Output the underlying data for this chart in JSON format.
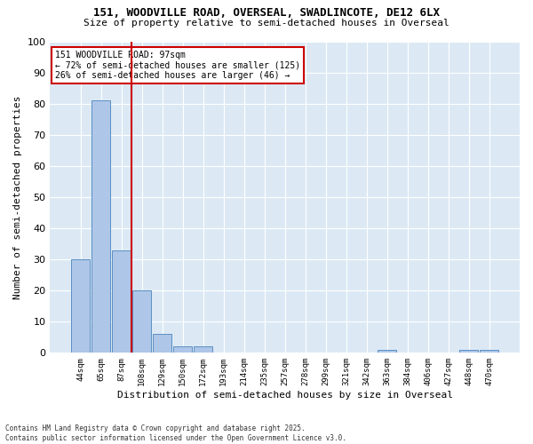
{
  "title_line1": "151, WOODVILLE ROAD, OVERSEAL, SWADLINCOTE, DE12 6LX",
  "title_line2": "Size of property relative to semi-detached houses in Overseal",
  "xlabel": "Distribution of semi-detached houses by size in Overseal",
  "ylabel": "Number of semi-detached properties",
  "categories": [
    "44sqm",
    "65sqm",
    "87sqm",
    "108sqm",
    "129sqm",
    "150sqm",
    "172sqm",
    "193sqm",
    "214sqm",
    "235sqm",
    "257sqm",
    "278sqm",
    "299sqm",
    "321sqm",
    "342sqm",
    "363sqm",
    "384sqm",
    "406sqm",
    "427sqm",
    "448sqm",
    "470sqm"
  ],
  "values": [
    30,
    81,
    33,
    20,
    6,
    2,
    2,
    0,
    0,
    0,
    0,
    0,
    0,
    0,
    0,
    1,
    0,
    0,
    0,
    1,
    1
  ],
  "bar_color": "#aec6e8",
  "bar_edge_color": "#5a8fc2",
  "background_color": "#dce9f5",
  "grid_color": "#ffffff",
  "vline_x_index": 2,
  "vline_color": "#cc0000",
  "annotation_title": "151 WOODVILLE ROAD: 97sqm",
  "annotation_line1": "← 72% of semi-detached houses are smaller (125)",
  "annotation_line2": "26% of semi-detached houses are larger (46) →",
  "annotation_box_color": "#cc0000",
  "footnote1": "Contains HM Land Registry data © Crown copyright and database right 2025.",
  "footnote2": "Contains public sector information licensed under the Open Government Licence v3.0.",
  "ylim": [
    0,
    100
  ],
  "yticks": [
    0,
    10,
    20,
    30,
    40,
    50,
    60,
    70,
    80,
    90,
    100
  ]
}
